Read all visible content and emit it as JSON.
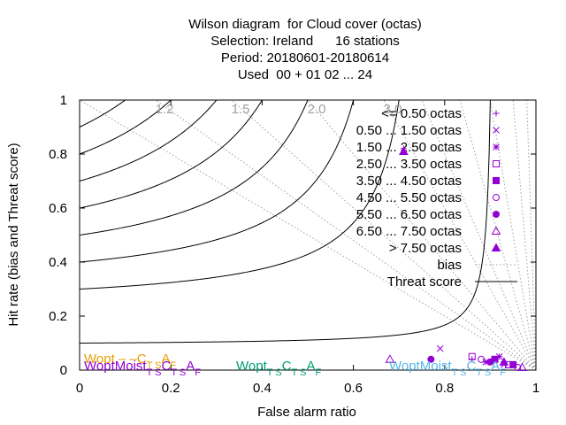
{
  "chart_data": {
    "type": "scatter",
    "title": [
      "Wilson diagram  for Cloud cover (octas)",
      "Selection: Ireland      16 stations",
      "Period: 20180601-20180614",
      "Used  00 + 01 02 ... 24"
    ],
    "xlabel": "False alarm ratio",
    "ylabel": "Hit rate (bias and Threat score)",
    "xlim": [
      0,
      1
    ],
    "ylim": [
      0,
      1
    ],
    "xticks": [
      0,
      0.2,
      0.4,
      0.6,
      0.8,
      1
    ],
    "yticks": [
      0,
      0.2,
      0.4,
      0.6,
      0.8,
      1
    ],
    "bias_lines": {
      "values": [
        1,
        1.2,
        1.5,
        2,
        3,
        4,
        6,
        10,
        20,
        50
      ],
      "labels": [
        null,
        "1.2",
        "1.5",
        "2.0",
        "3.0",
        null,
        null,
        null,
        null,
        null
      ],
      "name": "bias",
      "color": "#a0a0a0"
    },
    "threat_score_lines": {
      "values": [
        0.1,
        0.3,
        0.4,
        0.5,
        0.6,
        0.7,
        0.8,
        0.9
      ],
      "name": "Threat score",
      "color": "#000000"
    },
    "series": [
      {
        "name": "<= 0.50 octas",
        "marker": "plus",
        "color": "#9400d3",
        "x": [
          0.71,
          0.86
        ],
        "values": [
          0.82,
          0.04
        ]
      },
      {
        "name": "0.50 ... 1.50 octas",
        "marker": "cross",
        "color": "#9400d3",
        "x": [
          0.79,
          0.93
        ],
        "values": [
          0.08,
          0.02
        ]
      },
      {
        "name": "1.50 ... 2.50 octas",
        "marker": "star",
        "color": "#9400d3",
        "x": [
          0.89,
          0.92
        ],
        "values": [
          0.03,
          0.05
        ]
      },
      {
        "name": "2.50 ... 3.50 octas",
        "marker": "square",
        "color": "#9400d3",
        "x": [
          0.86,
          0.94
        ],
        "values": [
          0.05,
          0.02
        ]
      },
      {
        "name": "3.50 ... 4.50 octas",
        "marker": "filled-square",
        "color": "#9400d3",
        "x": [
          0.91,
          0.95
        ],
        "values": [
          0.04,
          0.02
        ]
      },
      {
        "name": "4.50 ... 5.50 octas",
        "marker": "circle",
        "color": "#9400d3",
        "x": [
          0.88,
          0.96
        ],
        "values": [
          0.04,
          0.01
        ]
      },
      {
        "name": "5.50 ... 6.50 octas",
        "marker": "filled-circle",
        "color": "#9400d3",
        "x": [
          0.77,
          0.9
        ],
        "values": [
          0.04,
          0.03
        ]
      },
      {
        "name": "6.50 ... 7.50 octas",
        "marker": "triangle",
        "color": "#9400d3",
        "x": [
          0.68,
          0.97
        ],
        "values": [
          0.04,
          0.01
        ]
      },
      {
        "name": "> 7.50 octas",
        "marker": "filled-triangle",
        "color": "#9400d3",
        "x": [
          0.71,
          0.93
        ],
        "values": [
          0.81,
          0.03
        ]
      }
    ],
    "model_labels": [
      {
        "color": "#e69f00",
        "segments": [
          [
            "Wopt – –C",
            ""
          ],
          [
            "T S",
            "sub"
          ],
          [
            "A",
            ""
          ],
          [
            "F",
            "sub"
          ]
        ]
      },
      {
        "color": "#9400d3",
        "segments": [
          [
            "WoptMoist",
            ""
          ],
          [
            "T S",
            "sub"
          ],
          [
            "C",
            ""
          ],
          [
            "T S",
            "sub"
          ],
          [
            "A",
            ""
          ],
          [
            "F",
            "sub"
          ]
        ]
      },
      {
        "color": "#009e73",
        "segments": [
          [
            "Wopt",
            ""
          ],
          [
            "T S",
            "sub"
          ],
          [
            "C",
            ""
          ],
          [
            "T S",
            "sub"
          ],
          [
            "A",
            ""
          ],
          [
            "F",
            "sub"
          ]
        ]
      },
      {
        "color": "#56b4e9",
        "segments": [
          [
            "WoptMoist",
            ""
          ],
          [
            "T S",
            "sub"
          ],
          [
            "C",
            ""
          ],
          [
            "T S",
            "sub"
          ],
          [
            "A",
            ""
          ],
          [
            "F",
            "sub"
          ]
        ]
      }
    ]
  }
}
